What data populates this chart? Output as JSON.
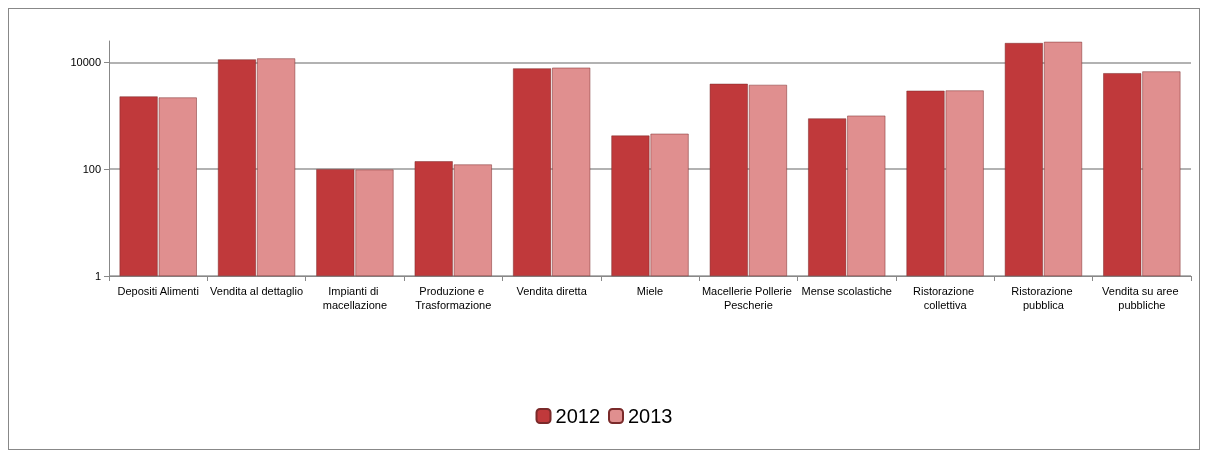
{
  "chart_data": {
    "type": "bar",
    "categories": [
      "Depositi Alimenti",
      "Vendita al dettaglio",
      "Impianti di macellazione",
      "Produzione e Trasformazione",
      "Vendita diretta",
      "Miele",
      "Macellerie Pollerie Pescherie",
      "Mense scolastiche",
      "Ristorazione collettiva",
      "Ristorazione pubblica",
      "Vendita su aree pubbliche"
    ],
    "series": [
      {
        "name": "2012",
        "color": "#c0393b",
        "values": [
          2290,
          11300,
          100,
          140,
          7670,
          424,
          3950,
          887,
          2930,
          22900,
          6240
        ]
      },
      {
        "name": "2013",
        "color": "#e08f8f",
        "values": [
          2190,
          11800,
          98,
          122,
          7900,
          459,
          3770,
          1000,
          2960,
          24100,
          6730
        ]
      }
    ],
    "log": "y",
    "ylim": [
      1,
      25000
    ],
    "yticks": [
      1,
      100,
      10000
    ],
    "grid": "y",
    "legend": "bottom"
  }
}
